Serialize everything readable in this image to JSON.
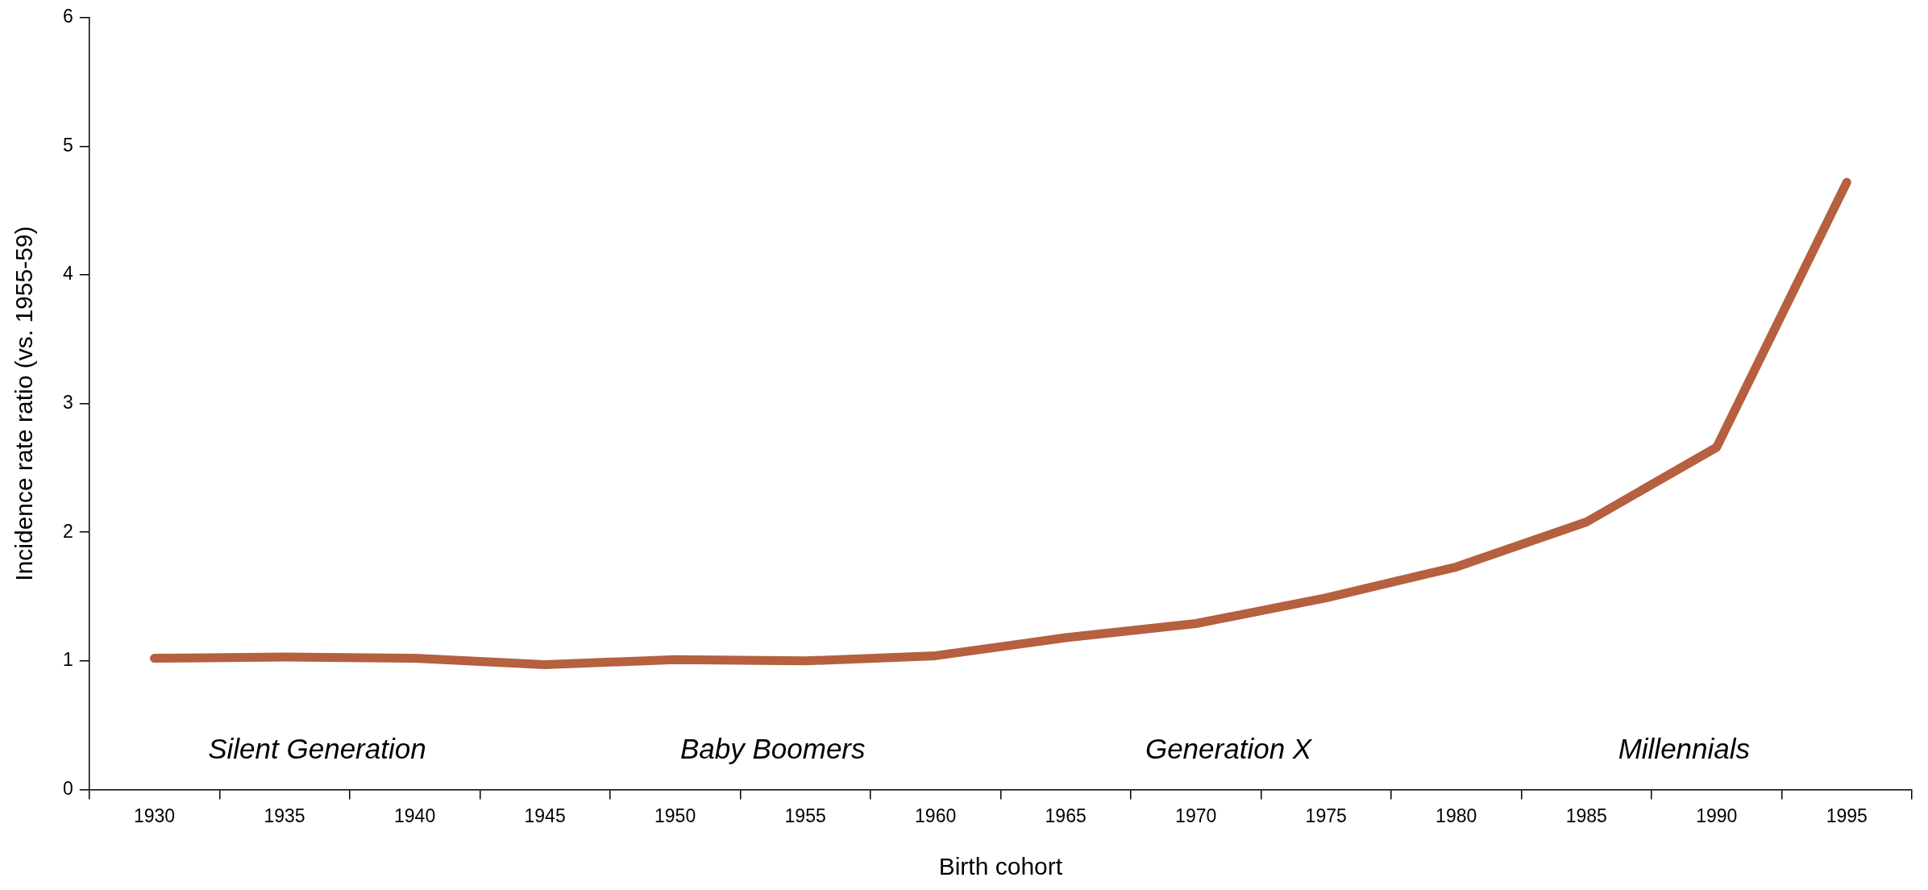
{
  "chart_data": {
    "type": "line",
    "xlabel": "Birth cohort",
    "ylabel": "Incidence rate ratio (vs. 1955-59)",
    "categories": [
      "1930",
      "1935",
      "1940",
      "1945",
      "1950",
      "1955",
      "1960",
      "1965",
      "1970",
      "1975",
      "1980",
      "1985",
      "1990",
      "1995"
    ],
    "series": [
      {
        "color": "#b5603f",
        "values": [
          1.02,
          1.03,
          1.02,
          0.97,
          1.01,
          1.0,
          1.04,
          1.18,
          1.29,
          1.49,
          1.73,
          2.08,
          2.66,
          4.72
        ]
      }
    ],
    "ylim": [
      0,
      6
    ],
    "yticks": [
      0,
      1,
      2,
      3,
      4,
      5,
      6
    ],
    "marker": "none",
    "line_style": "solid",
    "annotations": [
      "Silent Generation",
      "Baby Boomers",
      "Generation X",
      "Millennials"
    ]
  }
}
